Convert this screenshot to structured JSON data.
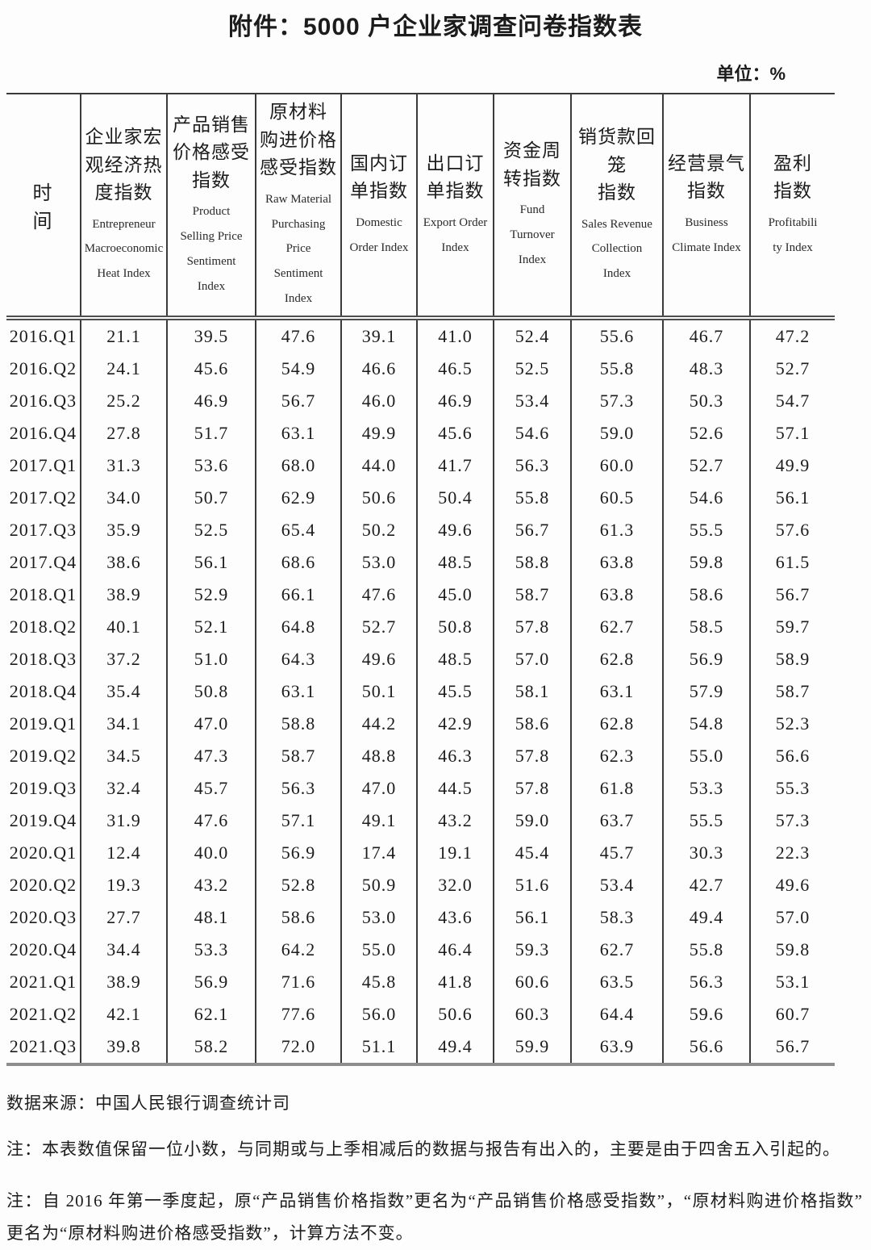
{
  "page": {
    "title": "附件：5000 户企业家调查问卷指数表",
    "unit_label": "单位：%"
  },
  "table": {
    "time_header": "时　　间",
    "columns": [
      {
        "zh": "企业家宏\n观经济热\n度指数",
        "en": "Entrepreneur\nMacroeconomic\nHeat Index"
      },
      {
        "zh": "产品销售\n价格感受\n指数",
        "en": "Product\nSelling Price\nSentiment\nIndex"
      },
      {
        "zh": "原材料\n购进价格\n感受指数",
        "en": "Raw Material\nPurchasing\nPrice\nSentiment\nIndex"
      },
      {
        "zh": "国内订\n单指数",
        "en": "Domestic\nOrder Index"
      },
      {
        "zh": "出口订\n单指数",
        "en": "Export Order\nIndex"
      },
      {
        "zh": "资金周\n转指数",
        "en": "Fund\nTurnover\nIndex"
      },
      {
        "zh": "销货款回\n笼\n指数",
        "en": "Sales Revenue\nCollection\nIndex"
      },
      {
        "zh": "经营景气\n指数",
        "en": "Business\nClimate Index"
      },
      {
        "zh": "盈利\n指数",
        "en": "Profitabili\nty Index"
      }
    ],
    "rows": [
      {
        "time": "2016.Q1",
        "values": [
          "21.1",
          "39.5",
          "47.6",
          "39.1",
          "41.0",
          "52.4",
          "55.6",
          "46.7",
          "47.2"
        ]
      },
      {
        "time": "2016.Q2",
        "values": [
          "24.1",
          "45.6",
          "54.9",
          "46.6",
          "46.5",
          "52.5",
          "55.8",
          "48.3",
          "52.7"
        ]
      },
      {
        "time": "2016.Q3",
        "values": [
          "25.2",
          "46.9",
          "56.7",
          "46.0",
          "46.9",
          "53.4",
          "57.3",
          "50.3",
          "54.7"
        ]
      },
      {
        "time": "2016.Q4",
        "values": [
          "27.8",
          "51.7",
          "63.1",
          "49.9",
          "45.6",
          "54.6",
          "59.0",
          "52.6",
          "57.1"
        ]
      },
      {
        "time": "2017.Q1",
        "values": [
          "31.3",
          "53.6",
          "68.0",
          "44.0",
          "41.7",
          "56.3",
          "60.0",
          "52.7",
          "49.9"
        ]
      },
      {
        "time": "2017.Q2",
        "values": [
          "34.0",
          "50.7",
          "62.9",
          "50.6",
          "50.4",
          "55.8",
          "60.5",
          "54.6",
          "56.1"
        ]
      },
      {
        "time": "2017.Q3",
        "values": [
          "35.9",
          "52.5",
          "65.4",
          "50.2",
          "49.6",
          "56.7",
          "61.3",
          "55.5",
          "57.6"
        ]
      },
      {
        "time": "2017.Q4",
        "values": [
          "38.6",
          "56.1",
          "68.6",
          "53.0",
          "48.5",
          "58.8",
          "63.8",
          "59.8",
          "61.5"
        ]
      },
      {
        "time": "2018.Q1",
        "values": [
          "38.9",
          "52.9",
          "66.1",
          "47.6",
          "45.0",
          "58.7",
          "63.8",
          "58.6",
          "56.7"
        ]
      },
      {
        "time": "2018.Q2",
        "values": [
          "40.1",
          "52.1",
          "64.8",
          "52.7",
          "50.8",
          "57.8",
          "62.7",
          "58.5",
          "59.7"
        ]
      },
      {
        "time": "2018.Q3",
        "values": [
          "37.2",
          "51.0",
          "64.3",
          "49.6",
          "48.5",
          "57.0",
          "62.8",
          "56.9",
          "58.9"
        ]
      },
      {
        "time": "2018.Q4",
        "values": [
          "35.4",
          "50.8",
          "63.1",
          "50.1",
          "45.5",
          "58.1",
          "63.1",
          "57.9",
          "58.7"
        ]
      },
      {
        "time": "2019.Q1",
        "values": [
          "34.1",
          "47.0",
          "58.8",
          "44.2",
          "42.9",
          "58.6",
          "62.8",
          "54.8",
          "52.3"
        ]
      },
      {
        "time": "2019.Q2",
        "values": [
          "34.5",
          "47.3",
          "58.7",
          "48.8",
          "46.3",
          "57.8",
          "62.3",
          "55.0",
          "56.6"
        ]
      },
      {
        "time": "2019.Q3",
        "values": [
          "32.4",
          "45.7",
          "56.3",
          "47.0",
          "44.5",
          "57.8",
          "61.8",
          "53.3",
          "55.3"
        ]
      },
      {
        "time": "2019.Q4",
        "values": [
          "31.9",
          "47.6",
          "57.1",
          "49.1",
          "43.2",
          "59.0",
          "63.7",
          "55.5",
          "57.3"
        ]
      },
      {
        "time": "2020.Q1",
        "values": [
          "12.4",
          "40.0",
          "56.9",
          "17.4",
          "19.1",
          "45.4",
          "45.7",
          "30.3",
          "22.3"
        ]
      },
      {
        "time": "2020.Q2",
        "values": [
          "19.3",
          "43.2",
          "52.8",
          "50.9",
          "32.0",
          "51.6",
          "53.4",
          "42.7",
          "49.6"
        ]
      },
      {
        "time": "2020.Q3",
        "values": [
          "27.7",
          "48.1",
          "58.6",
          "53.0",
          "43.6",
          "56.1",
          "58.3",
          "49.4",
          "57.0"
        ]
      },
      {
        "time": "2020.Q4",
        "values": [
          "34.4",
          "53.3",
          "64.2",
          "55.0",
          "46.4",
          "59.3",
          "62.7",
          "55.8",
          "59.8"
        ]
      },
      {
        "time": "2021.Q1",
        "values": [
          "38.9",
          "56.9",
          "71.6",
          "45.8",
          "41.8",
          "60.6",
          "63.5",
          "56.3",
          "53.1"
        ]
      },
      {
        "time": "2021.Q2",
        "values": [
          "42.1",
          "62.1",
          "77.6",
          "56.0",
          "50.6",
          "60.3",
          "64.4",
          "59.6",
          "60.7"
        ]
      },
      {
        "time": "2021.Q3",
        "values": [
          "39.8",
          "58.2",
          "72.0",
          "51.1",
          "49.4",
          "59.9",
          "63.9",
          "56.6",
          "56.7"
        ]
      }
    ]
  },
  "footer": {
    "source": "数据来源：中国人民银行调查统计司",
    "note1": "注：本表数值保留一位小数，与同期或与上季相减后的数据与报告有出入的，主要是由于四舍五入引起的。",
    "note2": "注：自 2016 年第一季度起，原“产品销售价格指数”更名为“产品销售价格感受指数”，“原材料购进价格指数”更名为“原材料购进价格感受指数”，计算方法不变。"
  }
}
